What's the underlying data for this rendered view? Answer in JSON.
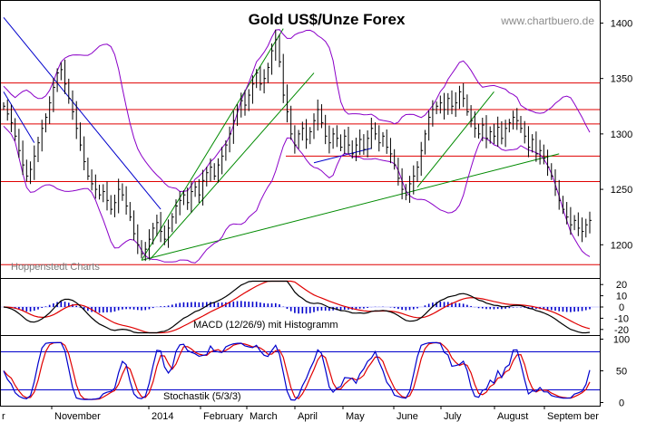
{
  "chart_data": {
    "type": "candlestick",
    "title": "Gold US$/Unze Forex",
    "watermark": "www.chartbuero.de",
    "source_label": "Hoppenstedt Charts",
    "x_labels": [
      "r",
      "November",
      "2014",
      "February",
      "March",
      "April",
      "May",
      "June",
      "July",
      "August",
      "Septem ber"
    ],
    "price_panel": {
      "yticks": [
        1200,
        1250,
        1300,
        1350,
        1400
      ],
      "ylim": [
        1170,
        1420
      ],
      "horizontal_levels": [
        1346,
        1322,
        1309,
        1257,
        1182
      ],
      "short_level": 1280,
      "bar_color": "#000000",
      "bollinger_color": "#8b00c8",
      "level_color": "#e00000",
      "trendline_color_up": "#008a00",
      "trendline_color_down": "#0000cc",
      "closes": [
        1325,
        1318,
        1310,
        1298,
        1285,
        1272,
        1262,
        1268,
        1280,
        1292,
        1305,
        1315,
        1328,
        1342,
        1355,
        1358,
        1345,
        1332,
        1320,
        1305,
        1290,
        1275,
        1262,
        1255,
        1250,
        1245,
        1248,
        1240,
        1232,
        1238,
        1250,
        1245,
        1235,
        1225,
        1210,
        1200,
        1192,
        1196,
        1205,
        1215,
        1220,
        1212,
        1205,
        1215,
        1225,
        1235,
        1240,
        1245,
        1238,
        1248,
        1252,
        1245,
        1258,
        1265,
        1270,
        1262,
        1272,
        1280,
        1290,
        1300,
        1312,
        1322,
        1330,
        1326,
        1335,
        1345,
        1355,
        1345,
        1350,
        1360,
        1375,
        1385,
        1365,
        1335,
        1320,
        1300,
        1290,
        1300,
        1305,
        1295,
        1302,
        1312,
        1322,
        1310,
        1298,
        1292,
        1300,
        1296,
        1288,
        1298,
        1290,
        1282,
        1290,
        1295,
        1286,
        1296,
        1305,
        1300,
        1292,
        1298,
        1288,
        1282,
        1272,
        1260,
        1250,
        1245,
        1255,
        1262,
        1270,
        1285,
        1300,
        1315,
        1322,
        1325,
        1328,
        1322,
        1332,
        1325,
        1328,
        1338,
        1332,
        1320,
        1312,
        1305,
        1300,
        1308,
        1296,
        1302,
        1298,
        1306,
        1296,
        1305,
        1310,
        1315,
        1312,
        1305,
        1298,
        1288,
        1295,
        1282,
        1285,
        1278,
        1270,
        1262,
        1250,
        1240,
        1232,
        1225,
        1218,
        1222,
        1215,
        1212,
        1218,
        1222
      ]
    },
    "macd_panel": {
      "label": "MACD (12/26/9) mit Histogramm",
      "yticks": [
        20,
        10,
        0,
        -10,
        -20
      ],
      "ylim": [
        -25,
        25
      ],
      "macd_color": "#000000",
      "signal_color": "#e00000",
      "histogram_color": "#0000cc"
    },
    "stochastic_panel": {
      "label": "Stochastik (5/3/3)",
      "yticks": [
        0,
        50,
        100
      ],
      "ylim": [
        -5,
        105
      ],
      "levels": [
        80,
        20
      ],
      "k_color": "#0000cc",
      "d_color": "#e00000",
      "level_color": "#0000cc"
    }
  }
}
